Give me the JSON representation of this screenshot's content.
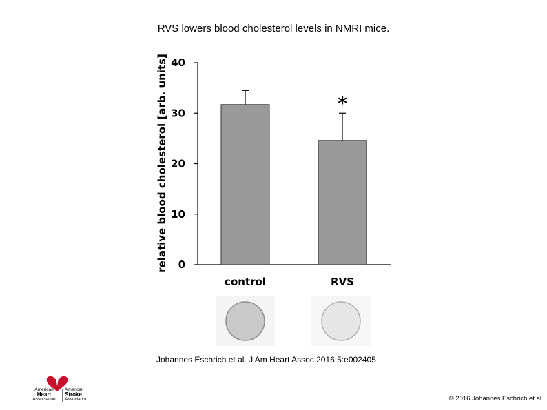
{
  "title": "RVS lowers blood cholesterol levels in NMRI mice.",
  "citation": "Johannes Eschrich et al. J Am Heart Assoc 2016;5:e002405",
  "copyright": "© 2016 Johannes Eschrich et al",
  "logo": {
    "left_line1": "American",
    "left_line2": "Heart",
    "left_line3": "Association",
    "right_line1": "American",
    "right_line2": "Stroke",
    "right_line3": "Association",
    "heart_color": "#c8102e"
  },
  "chart_data": {
    "type": "bar",
    "categories": [
      "control",
      "RVS"
    ],
    "values": [
      31.7,
      24.6
    ],
    "errors": [
      2.8,
      5.4
    ],
    "significance": [
      "",
      "*"
    ],
    "ylabel": "relative blood cholesterol [arb. units]",
    "ylim": [
      0,
      40
    ],
    "yticks": [
      0,
      10,
      20,
      30,
      40
    ],
    "bar_color": "#999999",
    "grid": false
  },
  "samples": {
    "control_color": "#c9c9c9",
    "rvs_color": "#e6e6e6"
  }
}
